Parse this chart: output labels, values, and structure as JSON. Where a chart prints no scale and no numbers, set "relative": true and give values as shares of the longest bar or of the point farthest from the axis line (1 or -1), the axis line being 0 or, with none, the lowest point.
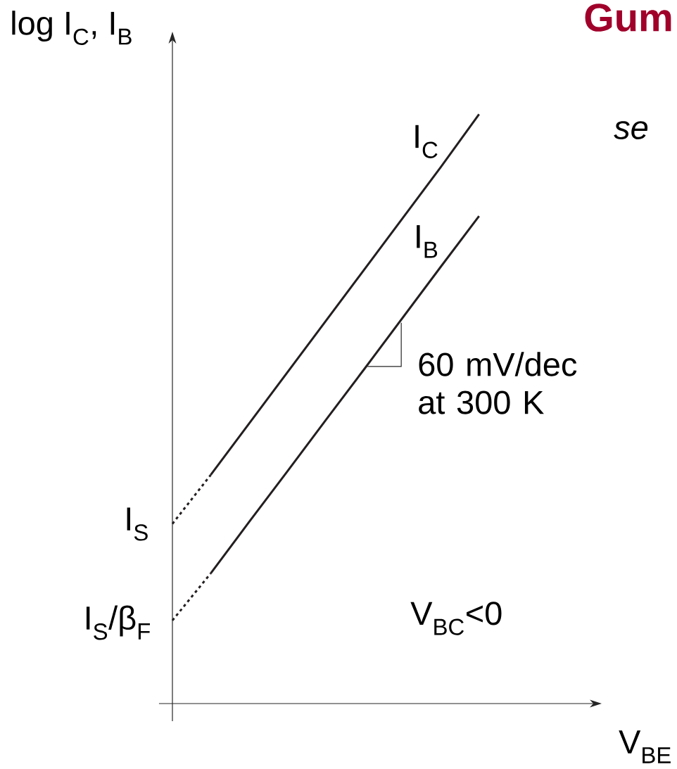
{
  "chart_data": {
    "type": "line",
    "relative": true,
    "title": "Gum",
    "xlabel": "V$_{BE}$",
    "ylabel": "log I$_{C}$, I$_{B}$",
    "categories": [
      null,
      null,
      null,
      null,
      null,
      null,
      null,
      null,
      null,
      null,
      null,
      null
    ],
    "series": [
      {
        "name": "I$_{C}$",
        "color": "#231f20",
        "line_style": "solid",
        "values": [
          null,
          0.388,
          0.475,
          0.562,
          0.649,
          0.736,
          0.823,
          0.91,
          1.0,
          null,
          null,
          null
        ]
      },
      {
        "name": "I$_{B}$",
        "color": "#231f20",
        "line_style": "solid",
        "values": [
          null,
          0.221,
          0.308,
          0.394,
          0.481,
          0.567,
          0.654,
          0.741,
          0.827,
          null,
          null,
          null
        ]
      },
      {
        "color": "#231f20",
        "line_style": "dotted",
        "values": [
          0.305,
          0.388,
          null,
          null,
          null,
          null,
          null,
          null,
          null,
          null,
          null,
          null
        ]
      },
      {
        "color": "#231f20",
        "line_style": "dotted",
        "values": [
          0.141,
          0.221,
          null,
          null,
          null,
          null,
          null,
          null,
          null,
          null,
          null,
          null
        ]
      }
    ],
    "marker": "none",
    "annotations": [
      "60 mV/dec at 300 K",
      "V$_{BC}$<0",
      "se",
      "I$_{S}$",
      "I$_{S}$/β$_{F}$"
    ]
  }
}
